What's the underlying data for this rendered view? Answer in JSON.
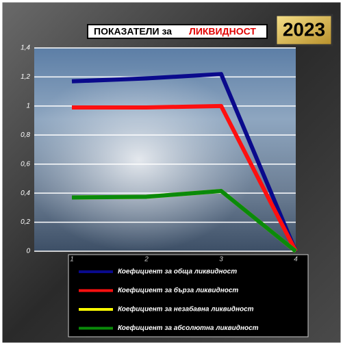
{
  "chart_data": {
    "type": "line",
    "title_parts": [
      "ПОКАЗАТЕЛИ за",
      "ЛИКВИДНОСТ"
    ],
    "year": "2023",
    "categories": [
      "1",
      "2",
      "3",
      "4"
    ],
    "series": [
      {
        "name": "Коефициент за обща ликвидност",
        "color": "#0a0a8c",
        "values": [
          1.17,
          1.19,
          1.22,
          0
        ]
      },
      {
        "name": "Коефициент за бърза ликвидност",
        "color": "#ff1010",
        "values": [
          0.99,
          0.99,
          1.0,
          0
        ]
      },
      {
        "name": "Коефициент за незабавна ликвидност",
        "color": "#ffff00",
        "values": [
          0.37,
          0.375,
          0.415,
          0
        ]
      },
      {
        "name": "Коефициент за абсолютна ликвидност",
        "color": "#0a8a0a",
        "values": [
          0.37,
          0.375,
          0.415,
          0
        ]
      }
    ],
    "ylim": [
      0,
      1.4
    ],
    "yticks": [
      0,
      {
        "value": 0.2,
        "label": "0,2"
      },
      {
        "value": 0.4,
        "label": "0,4"
      },
      {
        "value": 0.6,
        "label": "0,6"
      },
      {
        "value": 0.8,
        "label": "0,8"
      },
      1,
      {
        "value": 1.2,
        "label": "1,2"
      },
      {
        "value": 1.4,
        "label": "1,4"
      }
    ],
    "grid": true
  }
}
